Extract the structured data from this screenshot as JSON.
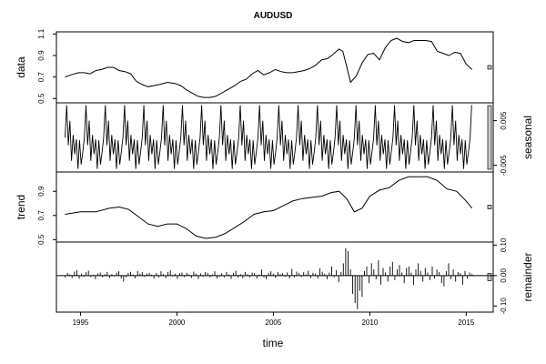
{
  "chart_data": {
    "type": "line",
    "title": "AUDUSD",
    "xlabel": "time",
    "xlim": [
      1993.75,
      2016.4
    ],
    "x_ticks": [
      1995,
      2000,
      2005,
      2010,
      2015
    ],
    "panels": [
      {
        "name": "data",
        "ylabel": "data",
        "ylim": [
          0.46,
          1.12
        ],
        "y_ticks": [
          "0.5",
          "0.7",
          "0.9",
          "1.1"
        ],
        "y_tick_values": [
          0.5,
          0.7,
          0.9,
          1.1
        ],
        "axis_side": "left",
        "style": "line",
        "x": [
          1994.2,
          1994.5,
          1994.9,
          1995.2,
          1995.5,
          1995.8,
          1996.1,
          1996.4,
          1996.7,
          1997.0,
          1997.3,
          1997.6,
          1997.9,
          1998.2,
          1998.5,
          1998.8,
          1999.1,
          1999.5,
          1999.9,
          2000.2,
          2000.5,
          2000.8,
          2001.1,
          2001.4,
          2001.7,
          2002.0,
          2002.3,
          2002.6,
          2003.0,
          2003.3,
          2003.6,
          2003.9,
          2004.2,
          2004.5,
          2004.8,
          2005.1,
          2005.4,
          2005.7,
          2006.0,
          2006.3,
          2006.6,
          2006.9,
          2007.2,
          2007.5,
          2007.8,
          2008.1,
          2008.4,
          2008.6,
          2008.8,
          2009.0,
          2009.3,
          2009.6,
          2009.9,
          2010.2,
          2010.5,
          2010.8,
          2011.1,
          2011.4,
          2011.7,
          2012.0,
          2012.3,
          2012.6,
          2012.9,
          2013.2,
          2013.5,
          2013.8,
          2014.1,
          2014.4,
          2014.7,
          2015.0,
          2015.3
        ],
        "values": [
          0.7,
          0.72,
          0.74,
          0.74,
          0.73,
          0.76,
          0.77,
          0.79,
          0.79,
          0.76,
          0.75,
          0.73,
          0.66,
          0.63,
          0.61,
          0.62,
          0.63,
          0.65,
          0.64,
          0.62,
          0.58,
          0.55,
          0.52,
          0.51,
          0.51,
          0.52,
          0.55,
          0.58,
          0.62,
          0.66,
          0.68,
          0.73,
          0.76,
          0.72,
          0.74,
          0.77,
          0.75,
          0.74,
          0.74,
          0.75,
          0.76,
          0.78,
          0.81,
          0.86,
          0.87,
          0.91,
          0.96,
          0.94,
          0.8,
          0.65,
          0.71,
          0.83,
          0.91,
          0.92,
          0.86,
          0.97,
          1.04,
          1.06,
          1.03,
          1.02,
          1.04,
          1.04,
          1.04,
          1.03,
          0.94,
          0.92,
          0.9,
          0.93,
          0.92,
          0.82,
          0.77
        ]
      },
      {
        "name": "seasonal",
        "ylabel": "seasonal",
        "ylim": [
          -0.0065,
          0.009
        ],
        "y_ticks": [
          "-0.005",
          "0.005"
        ],
        "y_tick_values": [
          -0.005,
          0.005
        ],
        "axis_side": "right",
        "style": "periodic",
        "period_start": 1994.2,
        "period_end": 2015.3,
        "pattern": [
          0.0012,
          0.0085,
          -0.0005,
          0.005,
          -0.004,
          0.0018,
          -0.0025,
          0.0008,
          -0.0058,
          0.0006,
          -0.0048,
          -0.002
        ]
      },
      {
        "name": "trend",
        "ylabel": "trend",
        "ylim": [
          0.48,
          1.06
        ],
        "y_ticks": [
          "0.5",
          "0.7",
          "0.9"
        ],
        "y_tick_values": [
          0.5,
          0.7,
          0.9
        ],
        "axis_side": "left",
        "style": "line",
        "x": [
          1994.2,
          1995.0,
          1995.8,
          1996.5,
          1997.0,
          1997.5,
          1998.0,
          1998.5,
          1999.0,
          1999.5,
          2000.0,
          2000.5,
          2001.0,
          2001.5,
          2002.0,
          2002.5,
          2003.0,
          2003.5,
          2004.0,
          2004.5,
          2005.0,
          2005.5,
          2006.0,
          2006.5,
          2007.0,
          2007.5,
          2008.0,
          2008.4,
          2008.8,
          2009.2,
          2009.6,
          2010.0,
          2010.5,
          2011.0,
          2011.5,
          2012.0,
          2012.5,
          2013.0,
          2013.5,
          2014.0,
          2014.5,
          2015.0,
          2015.3
        ],
        "values": [
          0.71,
          0.73,
          0.73,
          0.76,
          0.77,
          0.75,
          0.69,
          0.63,
          0.61,
          0.63,
          0.63,
          0.59,
          0.53,
          0.51,
          0.52,
          0.55,
          0.6,
          0.65,
          0.71,
          0.73,
          0.74,
          0.78,
          0.82,
          0.84,
          0.85,
          0.86,
          0.89,
          0.9,
          0.84,
          0.73,
          0.76,
          0.86,
          0.91,
          0.93,
          0.99,
          1.02,
          1.02,
          1.02,
          0.99,
          0.92,
          0.9,
          0.82,
          0.76
        ]
      },
      {
        "name": "remainder",
        "ylabel": "remainder",
        "ylim": [
          -0.12,
          0.11
        ],
        "y_ticks": [
          "-0.10",
          "0.00",
          "0.10"
        ],
        "y_tick_values": [
          -0.1,
          0.0,
          0.1
        ],
        "axis_side": "right",
        "style": "bars",
        "x_start": 1994.2,
        "x_end": 2015.3,
        "values": [
          -0.006,
          0.009,
          0.004,
          -0.008,
          0.013,
          0.018,
          -0.01,
          0.006,
          -0.004,
          0.011,
          0.016,
          -0.005,
          0.003,
          -0.012,
          0.007,
          0.01,
          -0.006,
          0.004,
          0.012,
          -0.008,
          0.005,
          -0.003,
          0.009,
          0.014,
          -0.01,
          -0.02,
          -0.006,
          0.008,
          0.012,
          0.004,
          -0.009,
          0.015,
          0.006,
          0.011,
          -0.004,
          0.007,
          0.009,
          0.003,
          -0.01,
          0.008,
          -0.006,
          0.014,
          0.005,
          -0.009,
          0.012,
          0.017,
          -0.003,
          0.006,
          -0.011,
          0.008,
          0.01,
          -0.005,
          0.009,
          0.004,
          -0.008,
          0.013,
          0.006,
          -0.012,
          0.007,
          -0.004,
          0.012,
          0.009,
          -0.006,
          0.004,
          0.014,
          -0.01,
          -0.004,
          0.008,
          -0.006,
          0.012,
          0.004,
          -0.011,
          0.009,
          0.016,
          -0.007,
          0.005,
          -0.009,
          0.012,
          0.004,
          -0.006,
          0.01,
          0.008,
          -0.01,
          0.004,
          0.02,
          -0.006,
          -0.012,
          0.009,
          0.014,
          0.006,
          -0.008,
          0.012,
          0.005,
          0.008,
          -0.004,
          0.01,
          -0.009,
          0.022,
          -0.006,
          0.013,
          0.008,
          -0.005,
          0.011,
          0.004,
          0.016,
          -0.008,
          0.009,
          0.006,
          -0.01,
          0.024,
          0.013,
          0.006,
          -0.012,
          0.01,
          0.03,
          -0.006,
          0.018,
          -0.022,
          0.012,
          0.04,
          0.09,
          0.08,
          0.02,
          -0.06,
          -0.09,
          -0.11,
          -0.05,
          -0.07,
          0.015,
          0.03,
          -0.025,
          0.04,
          0.02,
          -0.012,
          0.05,
          -0.03,
          0.025,
          0.01,
          -0.02,
          0.03,
          0.045,
          -0.015,
          0.02,
          0.035,
          0.01,
          -0.025,
          0.025,
          0.03,
          0.01,
          -0.03,
          0.02,
          0.04,
          0.015,
          -0.02,
          0.025,
          0.01,
          -0.015,
          0.03,
          -0.01,
          0.02,
          0.012,
          -0.025,
          -0.035,
          0.015,
          0.04,
          -0.012,
          0.02,
          -0.02,
          0.012,
          0.008,
          -0.03,
          0.015,
          -0.01,
          0.01,
          0.005
        ]
      }
    ]
  }
}
